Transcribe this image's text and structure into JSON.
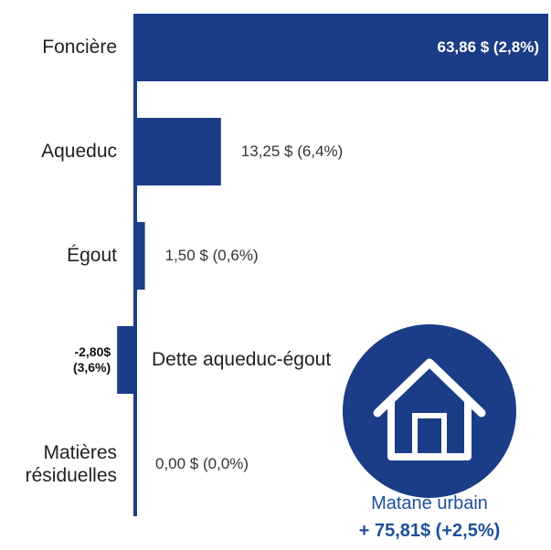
{
  "chart_data": {
    "type": "barh",
    "categories": [
      "Foncière",
      "Aqueduc",
      "Égout",
      "Dette aqueduc-égout",
      "Matières résiduelles"
    ],
    "values": [
      63.86,
      13.25,
      1.5,
      -2.8,
      0
    ],
    "value_labels": [
      "63,86 $ (2,8%)",
      "13,25 $ (6,4%)",
      "1,50 $ (0,6%)",
      "-2,80$ (3,6%)",
      "0,00 $ (0,0%)"
    ],
    "color": "#1b3c87",
    "annotations": [
      "Matane urbain",
      "+ 75,81$ (+2,5%)"
    ]
  }
}
